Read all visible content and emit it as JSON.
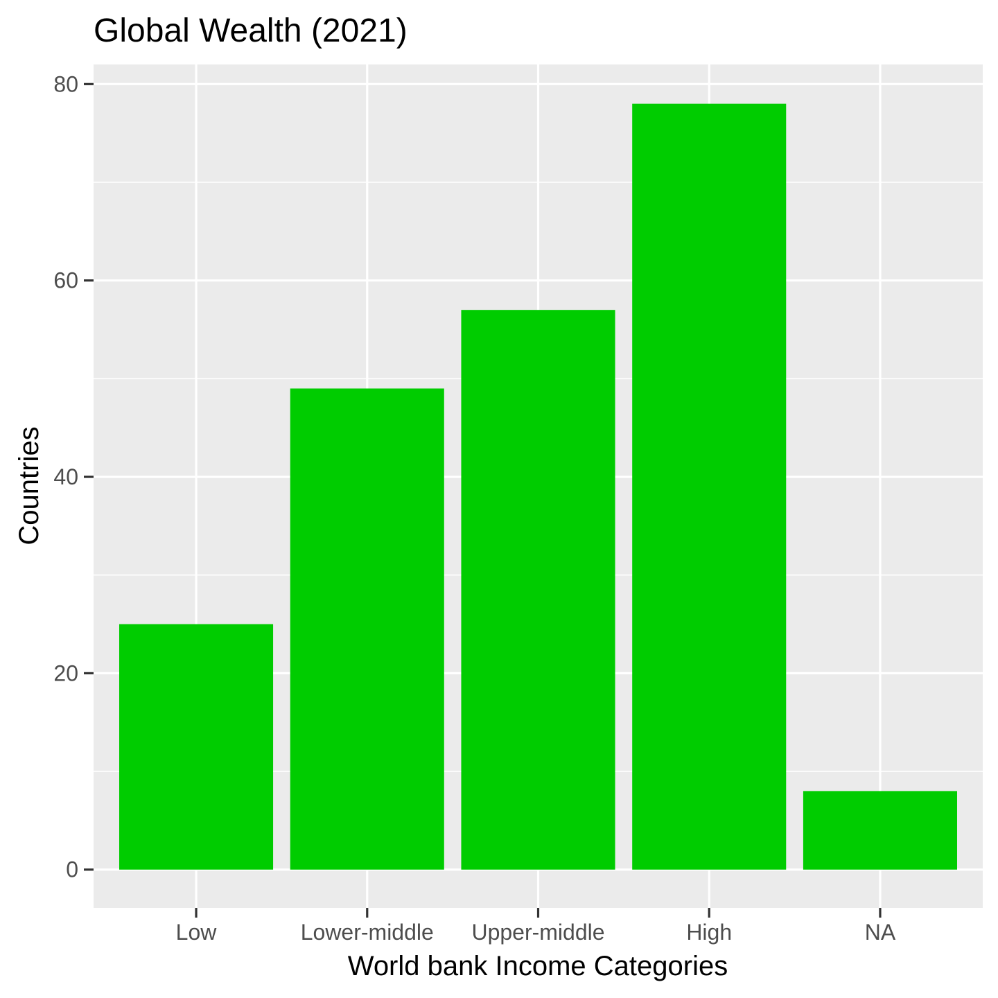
{
  "chart_data": {
    "type": "bar",
    "title": "Global Wealth (2021)",
    "xlabel": "World bank Income Categories",
    "ylabel": "Countries",
    "categories": [
      "Low",
      "Lower-middle",
      "Upper-middle",
      "High",
      "NA"
    ],
    "values": [
      25,
      49,
      57,
      78,
      8
    ],
    "ylim": [
      -3.9,
      82
    ],
    "yticks": [
      0,
      20,
      40,
      60,
      80
    ],
    "ytick_labels": [
      "0",
      "20",
      "40",
      "60",
      "80"
    ],
    "grid": true,
    "colors": {
      "bar": "#00CC00",
      "panel": "#EBEBEB",
      "grid": "#FFFFFF",
      "tick": "#333333"
    }
  }
}
